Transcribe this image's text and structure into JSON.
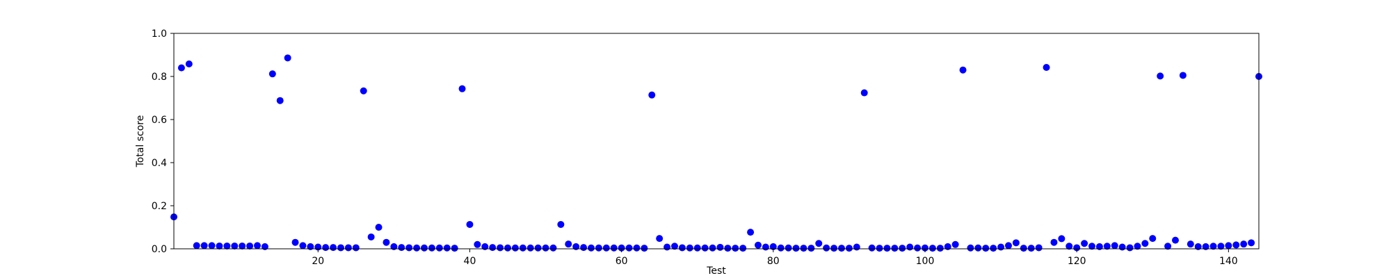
{
  "chart_data": {
    "type": "scatter",
    "title": "",
    "xlabel": "Test",
    "ylabel": "Total score",
    "xlim": [
      1,
      144
    ],
    "ylim": [
      0,
      1.0
    ],
    "xticks": [
      20,
      40,
      60,
      80,
      100,
      120,
      140
    ],
    "yticks": [
      0.0,
      0.2,
      0.4,
      0.6,
      0.8,
      1.0
    ],
    "xtick_labels": [
      "20",
      "40",
      "60",
      "80",
      "100",
      "120",
      "140"
    ],
    "ytick_labels": [
      "0.0",
      "0.2",
      "0.4",
      "0.6",
      "0.8",
      "1.0"
    ],
    "grid": false,
    "marker_color": "#0000ff",
    "series": [
      {
        "values": [
          [
            1,
            0.148
          ],
          [
            2,
            0.84
          ],
          [
            3,
            0.858
          ],
          [
            4,
            0.015
          ],
          [
            5,
            0.015
          ],
          [
            6,
            0.015
          ],
          [
            7,
            0.013
          ],
          [
            8,
            0.013
          ],
          [
            9,
            0.013
          ],
          [
            10,
            0.013
          ],
          [
            11,
            0.013
          ],
          [
            12,
            0.015
          ],
          [
            13,
            0.01
          ],
          [
            14,
            0.812
          ],
          [
            15,
            0.688
          ],
          [
            16,
            0.886
          ],
          [
            17,
            0.03
          ],
          [
            18,
            0.015
          ],
          [
            19,
            0.01
          ],
          [
            20,
            0.008
          ],
          [
            21,
            0.006
          ],
          [
            22,
            0.006
          ],
          [
            23,
            0.005
          ],
          [
            24,
            0.005
          ],
          [
            25,
            0.005
          ],
          [
            26,
            0.733
          ],
          [
            27,
            0.055
          ],
          [
            28,
            0.1
          ],
          [
            29,
            0.03
          ],
          [
            30,
            0.01
          ],
          [
            31,
            0.006
          ],
          [
            32,
            0.005
          ],
          [
            33,
            0.004
          ],
          [
            34,
            0.004
          ],
          [
            35,
            0.004
          ],
          [
            36,
            0.004
          ],
          [
            37,
            0.004
          ],
          [
            38,
            0.003
          ],
          [
            39,
            0.743
          ],
          [
            40,
            0.113
          ],
          [
            41,
            0.02
          ],
          [
            42,
            0.01
          ],
          [
            43,
            0.006
          ],
          [
            44,
            0.005
          ],
          [
            45,
            0.004
          ],
          [
            46,
            0.004
          ],
          [
            47,
            0.004
          ],
          [
            48,
            0.004
          ],
          [
            49,
            0.004
          ],
          [
            50,
            0.004
          ],
          [
            51,
            0.004
          ],
          [
            52,
            0.113
          ],
          [
            53,
            0.022
          ],
          [
            54,
            0.01
          ],
          [
            55,
            0.006
          ],
          [
            56,
            0.004
          ],
          [
            57,
            0.004
          ],
          [
            58,
            0.004
          ],
          [
            59,
            0.004
          ],
          [
            60,
            0.004
          ],
          [
            61,
            0.004
          ],
          [
            62,
            0.004
          ],
          [
            63,
            0.003
          ],
          [
            64,
            0.714
          ],
          [
            65,
            0.048
          ],
          [
            66,
            0.008
          ],
          [
            67,
            0.012
          ],
          [
            68,
            0.005
          ],
          [
            69,
            0.004
          ],
          [
            70,
            0.004
          ],
          [
            71,
            0.004
          ],
          [
            72,
            0.004
          ],
          [
            73,
            0.007
          ],
          [
            74,
            0.003
          ],
          [
            75,
            0.003
          ],
          [
            76,
            0.003
          ],
          [
            77,
            0.077
          ],
          [
            78,
            0.017
          ],
          [
            79,
            0.008
          ],
          [
            80,
            0.01
          ],
          [
            81,
            0.004
          ],
          [
            82,
            0.004
          ],
          [
            83,
            0.003
          ],
          [
            84,
            0.003
          ],
          [
            85,
            0.003
          ],
          [
            86,
            0.025
          ],
          [
            87,
            0.004
          ],
          [
            88,
            0.003
          ],
          [
            89,
            0.003
          ],
          [
            90,
            0.003
          ],
          [
            91,
            0.008
          ],
          [
            92,
            0.724
          ],
          [
            93,
            0.004
          ],
          [
            94,
            0.003
          ],
          [
            95,
            0.003
          ],
          [
            96,
            0.003
          ],
          [
            97,
            0.003
          ],
          [
            98,
            0.008
          ],
          [
            99,
            0.004
          ],
          [
            100,
            0.004
          ],
          [
            101,
            0.003
          ],
          [
            102,
            0.003
          ],
          [
            103,
            0.01
          ],
          [
            104,
            0.02
          ],
          [
            105,
            0.83
          ],
          [
            106,
            0.004
          ],
          [
            107,
            0.004
          ],
          [
            108,
            0.003
          ],
          [
            109,
            0.003
          ],
          [
            110,
            0.008
          ],
          [
            111,
            0.015
          ],
          [
            112,
            0.028
          ],
          [
            113,
            0.003
          ],
          [
            114,
            0.003
          ],
          [
            115,
            0.005
          ],
          [
            116,
            0.842
          ],
          [
            117,
            0.03
          ],
          [
            118,
            0.047
          ],
          [
            119,
            0.012
          ],
          [
            120,
            0.005
          ],
          [
            121,
            0.025
          ],
          [
            122,
            0.012
          ],
          [
            123,
            0.01
          ],
          [
            124,
            0.012
          ],
          [
            125,
            0.015
          ],
          [
            126,
            0.008
          ],
          [
            127,
            0.005
          ],
          [
            128,
            0.012
          ],
          [
            129,
            0.025
          ],
          [
            130,
            0.048
          ],
          [
            131,
            0.802
          ],
          [
            132,
            0.012
          ],
          [
            133,
            0.04
          ],
          [
            134,
            0.805
          ],
          [
            135,
            0.022
          ],
          [
            136,
            0.01
          ],
          [
            137,
            0.01
          ],
          [
            138,
            0.012
          ],
          [
            139,
            0.012
          ],
          [
            140,
            0.015
          ],
          [
            141,
            0.018
          ],
          [
            142,
            0.022
          ],
          [
            143,
            0.028
          ],
          [
            144,
            0.8
          ]
        ]
      }
    ]
  }
}
